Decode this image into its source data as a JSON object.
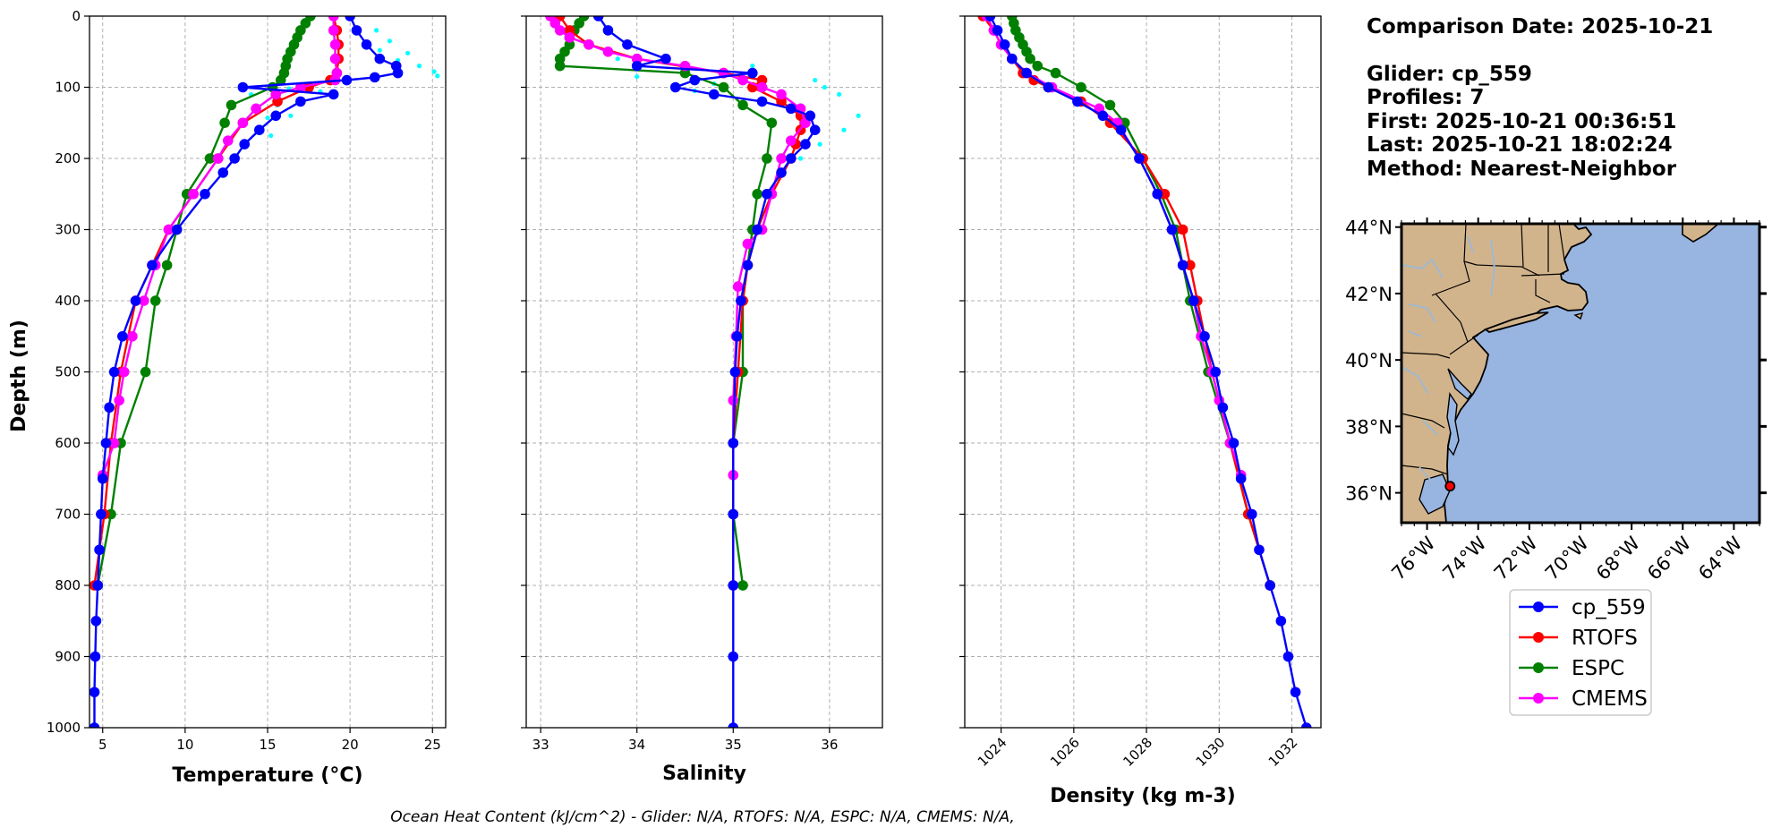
{
  "info": {
    "comparison_date": "Comparison Date: 2025-10-21",
    "glider": "Glider: cp_559",
    "profiles": "Profiles: 7",
    "first": "First: 2025-10-21 00:36:51",
    "last": "Last: 2025-10-21 18:02:24",
    "method": "Method: Nearest-Neighbor"
  },
  "footer": "Ocean Heat Content (kJ/cm^2) - Glider: N/A,  RTOFS: N/A,  ESPC: N/A,  CMEMS: N/A,",
  "colors": {
    "glider": "#0000ff",
    "glider_scatter": "#00ffff",
    "rtofs": "#ff0000",
    "espc": "#008000",
    "cmems": "#ff00ff",
    "land": "#d2b48c",
    "ocean": "#98b4e0",
    "river": "#a0b8d0",
    "grid": "#b0b0b0"
  },
  "legend": [
    {
      "key": "glider",
      "label": "cp_559"
    },
    {
      "key": "rtofs",
      "label": "RTOFS"
    },
    {
      "key": "espc",
      "label": "ESPC"
    },
    {
      "key": "cmems",
      "label": "CMEMS"
    }
  ],
  "map": {
    "lon_ticks": [
      "76°W",
      "74°W",
      "72°W",
      "70°W",
      "68°W",
      "66°W",
      "64°W"
    ],
    "lat_ticks": [
      "44°N",
      "42°N",
      "40°N",
      "38°N",
      "36°N"
    ],
    "glider_position": {
      "lon": -75.1,
      "lat": 36.2
    }
  },
  "chart_data": [
    {
      "type": "line",
      "id": "temperature",
      "xlabel": "Temperature (°C)",
      "ylabel": "Depth (m)",
      "xlim": [
        4.2,
        25.8
      ],
      "ylim": [
        1000,
        0
      ],
      "xticks": [
        5,
        10,
        15,
        20,
        25
      ],
      "yticks": [
        0,
        100,
        200,
        300,
        400,
        500,
        600,
        700,
        800,
        900,
        1000
      ],
      "grid": true,
      "scatter": [
        [
          21.6,
          20
        ],
        [
          22.4,
          35
        ],
        [
          23.5,
          52
        ],
        [
          24.2,
          70
        ],
        [
          25.1,
          78
        ],
        [
          25.3,
          84
        ],
        [
          22.9,
          62
        ],
        [
          21.8,
          48
        ],
        [
          16.3,
          102
        ],
        [
          14.0,
          110
        ],
        [
          15.6,
          125
        ],
        [
          15.0,
          143
        ],
        [
          16.4,
          140
        ],
        [
          15.2,
          168
        ],
        [
          17.0,
          118
        ],
        [
          18.2,
          106
        ]
      ],
      "series": [
        {
          "key": "glider",
          "name": "cp_559",
          "depth": [
            0,
            20,
            40,
            60,
            70,
            80,
            86,
            90,
            100,
            110,
            120,
            140,
            160,
            180,
            200,
            220,
            250,
            300,
            350,
            400,
            450,
            500,
            550,
            600,
            650,
            700,
            750,
            800,
            850,
            900,
            950,
            1000
          ],
          "values": [
            20.0,
            20.4,
            21.0,
            21.8,
            22.8,
            22.9,
            21.5,
            19.8,
            13.5,
            19.0,
            17.0,
            15.5,
            14.5,
            13.6,
            13.0,
            12.3,
            11.2,
            9.5,
            8.0,
            7.0,
            6.2,
            5.7,
            5.4,
            5.2,
            5.0,
            4.9,
            4.8,
            4.7,
            4.6,
            4.55,
            4.5,
            4.5
          ]
        },
        {
          "key": "rtofs",
          "name": "RTOFS",
          "depth": [
            0,
            20,
            40,
            60,
            80,
            90,
            100,
            120,
            150,
            200,
            250,
            300,
            350,
            400,
            500,
            600,
            700,
            800
          ],
          "values": [
            19.0,
            19.2,
            19.3,
            19.3,
            19.2,
            18.8,
            17.5,
            15.6,
            13.5,
            12.0,
            10.5,
            9.0,
            8.0,
            7.0,
            6.1,
            5.5,
            5.1,
            4.5
          ]
        },
        {
          "key": "espc",
          "name": "ESPC",
          "depth": [
            0,
            10,
            20,
            30,
            40,
            50,
            60,
            70,
            80,
            90,
            100,
            125,
            150,
            200,
            250,
            300,
            350,
            400,
            500,
            600,
            700,
            800
          ],
          "values": [
            17.6,
            17.3,
            17.0,
            16.8,
            16.6,
            16.4,
            16.2,
            16.1,
            16.0,
            15.8,
            15.3,
            12.8,
            12.4,
            11.5,
            10.1,
            9.5,
            8.9,
            8.2,
            7.6,
            6.1,
            5.5,
            4.7
          ]
        },
        {
          "key": "cmems",
          "name": "CMEMS",
          "depth": [
            0,
            20,
            40,
            60,
            80,
            90,
            100,
            110,
            130,
            150,
            175,
            200,
            250,
            300,
            350,
            400,
            450,
            500,
            540,
            600,
            645
          ],
          "values": [
            19.0,
            19.0,
            19.1,
            19.1,
            19.2,
            19.1,
            17.0,
            15.5,
            14.3,
            13.5,
            12.6,
            12.0,
            10.5,
            9.0,
            8.2,
            7.5,
            6.8,
            6.3,
            6.0,
            5.7,
            5.0
          ]
        }
      ]
    },
    {
      "type": "line",
      "id": "salinity",
      "xlabel": "Salinity",
      "ylabel": "",
      "xlim": [
        32.85,
        36.55
      ],
      "ylim": [
        1000,
        0
      ],
      "xticks": [
        33,
        34,
        35,
        36
      ],
      "grid": true,
      "scatter": [
        [
          35.85,
          90
        ],
        [
          35.95,
          100
        ],
        [
          36.1,
          110
        ],
        [
          36.3,
          140
        ],
        [
          36.15,
          160
        ],
        [
          35.9,
          180
        ],
        [
          35.7,
          200
        ],
        [
          34.8,
          95
        ],
        [
          34.6,
          105
        ],
        [
          35.2,
          70
        ],
        [
          34.0,
          85
        ],
        [
          33.8,
          60
        ]
      ],
      "series": [
        {
          "key": "glider",
          "name": "cp_559",
          "depth": [
            0,
            20,
            40,
            60,
            70,
            80,
            90,
            100,
            110,
            120,
            130,
            140,
            160,
            180,
            200,
            220,
            250,
            300,
            350,
            400,
            450,
            500,
            600,
            700,
            800,
            900,
            1000
          ],
          "values": [
            33.6,
            33.7,
            33.9,
            34.3,
            34.0,
            35.2,
            34.6,
            34.4,
            34.8,
            35.3,
            35.6,
            35.8,
            35.85,
            35.75,
            35.6,
            35.5,
            35.35,
            35.25,
            35.15,
            35.08,
            35.04,
            35.02,
            35.0,
            35.0,
            35.0,
            35.0,
            35.0
          ]
        },
        {
          "key": "rtofs",
          "name": "RTOFS",
          "depth": [
            0,
            20,
            40,
            60,
            80,
            90,
            100,
            120,
            140,
            160,
            180,
            200,
            250,
            300,
            350,
            400,
            500,
            600,
            700,
            800
          ],
          "values": [
            33.2,
            33.3,
            33.5,
            34.0,
            34.9,
            35.3,
            35.2,
            35.5,
            35.7,
            35.7,
            35.65,
            35.6,
            35.4,
            35.25,
            35.15,
            35.1,
            35.05,
            35.0,
            35.0,
            35.0
          ]
        },
        {
          "key": "espc",
          "name": "ESPC",
          "depth": [
            0,
            10,
            20,
            30,
            40,
            50,
            60,
            70,
            80,
            100,
            125,
            150,
            200,
            250,
            300,
            350,
            400,
            500,
            600,
            700,
            800
          ],
          "values": [
            33.45,
            33.4,
            33.35,
            33.3,
            33.3,
            33.25,
            33.2,
            33.2,
            34.5,
            34.9,
            35.1,
            35.4,
            35.35,
            35.25,
            35.2,
            35.15,
            35.1,
            35.1,
            35.0,
            35.0,
            35.1
          ]
        },
        {
          "key": "cmems",
          "name": "CMEMS",
          "depth": [
            0,
            10,
            20,
            30,
            40,
            50,
            60,
            70,
            80,
            90,
            100,
            110,
            130,
            150,
            175,
            200,
            250,
            300,
            320,
            380,
            450,
            540,
            645
          ],
          "values": [
            33.1,
            33.15,
            33.2,
            33.3,
            33.5,
            33.7,
            34.0,
            34.5,
            34.9,
            35.1,
            35.3,
            35.5,
            35.7,
            35.75,
            35.6,
            35.5,
            35.4,
            35.3,
            35.15,
            35.05,
            35.03,
            35.0,
            35.0
          ]
        }
      ]
    },
    {
      "type": "line",
      "id": "density",
      "xlabel": "Density (kg m-3)",
      "ylabel": "",
      "xlim": [
        1023.0,
        1032.8
      ],
      "ylim": [
        1000,
        0
      ],
      "xticks": [
        1024,
        1026,
        1028,
        1030,
        1032
      ],
      "grid": true,
      "scatter": [],
      "series": [
        {
          "key": "glider",
          "name": "cp_559",
          "depth": [
            0,
            20,
            40,
            60,
            80,
            100,
            120,
            140,
            160,
            200,
            250,
            300,
            350,
            400,
            450,
            500,
            550,
            600,
            650,
            700,
            750,
            800,
            850,
            900,
            950,
            1000
          ],
          "values": [
            1023.7,
            1023.9,
            1024.1,
            1024.3,
            1024.7,
            1025.3,
            1026.1,
            1026.8,
            1027.3,
            1027.8,
            1028.3,
            1028.7,
            1029.0,
            1029.3,
            1029.6,
            1029.9,
            1030.1,
            1030.4,
            1030.6,
            1030.9,
            1031.1,
            1031.4,
            1031.7,
            1031.9,
            1032.1,
            1032.4
          ]
        },
        {
          "key": "rtofs",
          "name": "RTOFS",
          "depth": [
            0,
            20,
            40,
            60,
            80,
            90,
            100,
            120,
            150,
            200,
            250,
            300,
            350,
            400,
            500,
            600,
            700,
            800
          ],
          "values": [
            1023.5,
            1023.8,
            1024.0,
            1024.3,
            1024.6,
            1024.9,
            1025.3,
            1026.2,
            1027.0,
            1027.9,
            1028.5,
            1029.0,
            1029.2,
            1029.4,
            1029.8,
            1030.3,
            1030.8,
            1031.4
          ]
        },
        {
          "key": "espc",
          "name": "ESPC",
          "depth": [
            0,
            10,
            20,
            30,
            40,
            50,
            60,
            70,
            80,
            100,
            125,
            150,
            200,
            250,
            300,
            350,
            400,
            500,
            600,
            700,
            800
          ],
          "values": [
            1024.3,
            1024.35,
            1024.4,
            1024.5,
            1024.6,
            1024.7,
            1024.8,
            1025.0,
            1025.5,
            1026.2,
            1027.0,
            1027.4,
            1027.9,
            1028.4,
            1028.8,
            1029.0,
            1029.2,
            1029.7,
            1030.3,
            1030.8,
            1031.4
          ]
        },
        {
          "key": "cmems",
          "name": "CMEMS",
          "depth": [
            0,
            20,
            40,
            60,
            80,
            100,
            130,
            150,
            200,
            250,
            300,
            350,
            400,
            450,
            500,
            540,
            600,
            645
          ],
          "values": [
            1023.6,
            1023.8,
            1024.0,
            1024.3,
            1024.7,
            1025.4,
            1026.7,
            1027.2,
            1027.8,
            1028.3,
            1028.7,
            1029.0,
            1029.3,
            1029.5,
            1029.8,
            1030.0,
            1030.3,
            1030.6
          ]
        }
      ]
    }
  ]
}
